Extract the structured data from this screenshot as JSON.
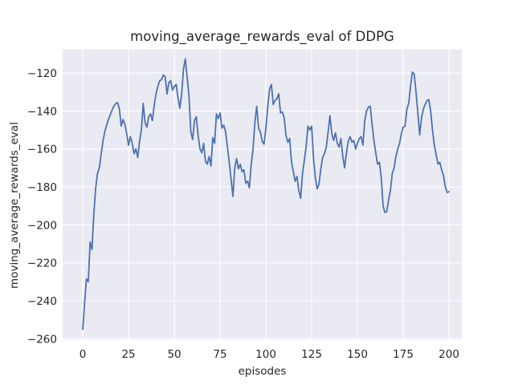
{
  "chart_data": {
    "type": "line",
    "title": "moving_average_rewards_eval of DDPG",
    "xlabel": "episodes",
    "ylabel": "moving_average_rewards_eval",
    "x_start": 0,
    "x_step": 1,
    "values": [
      -255,
      -241,
      -228.5,
      -230,
      -209,
      -213,
      -195,
      -181,
      -173,
      -170,
      -163,
      -156,
      -151,
      -147.5,
      -144.5,
      -142,
      -139.5,
      -137.5,
      -136,
      -135.5,
      -139,
      -148,
      -144.5,
      -147,
      -152,
      -158,
      -153.5,
      -157,
      -162.5,
      -160,
      -164.5,
      -156,
      -150,
      -136,
      -146,
      -148.5,
      -143,
      -141.5,
      -145,
      -137,
      -131,
      -127,
      -124,
      -123.5,
      -121,
      -122,
      -131,
      -125,
      -124,
      -129,
      -127,
      -126,
      -133,
      -138.5,
      -131,
      -118,
      -112.5,
      -122,
      -132,
      -151,
      -155,
      -145,
      -143,
      -153,
      -160,
      -162,
      -157,
      -166.5,
      -168,
      -164,
      -169,
      -154,
      -157,
      -141.5,
      -144,
      -141,
      -149,
      -147.5,
      -151,
      -159,
      -167,
      -176,
      -185,
      -170,
      -165,
      -170.5,
      -168,
      -172,
      -171,
      -178,
      -177,
      -180.5,
      -168,
      -160,
      -146,
      -137.5,
      -149,
      -151,
      -156,
      -157.5,
      -149,
      -138,
      -128.5,
      -126,
      -136.5,
      -134.5,
      -133.5,
      -131,
      -141,
      -140.5,
      -143.5,
      -153,
      -156.5,
      -154.5,
      -167,
      -172,
      -177,
      -174.5,
      -182,
      -186,
      -173,
      -166,
      -158.5,
      -148,
      -150,
      -148,
      -165,
      -175,
      -181,
      -178.5,
      -170.5,
      -164.5,
      -162.5,
      -159,
      -151,
      -142.5,
      -152,
      -155.5,
      -151.5,
      -157,
      -159,
      -154.5,
      -164,
      -170,
      -162,
      -156,
      -153.5,
      -156.5,
      -155.5,
      -160,
      -157,
      -154.5,
      -153.5,
      -158,
      -145,
      -140,
      -138,
      -137.5,
      -147,
      -155.5,
      -162,
      -168,
      -167,
      -175,
      -190,
      -193.5,
      -193,
      -187,
      -182,
      -173,
      -170,
      -164,
      -160,
      -157,
      -152,
      -148.5,
      -148,
      -139,
      -136,
      -127,
      -119.5,
      -120.5,
      -130,
      -141,
      -152.5,
      -143.5,
      -139,
      -136.5,
      -134.5,
      -134,
      -140,
      -150,
      -158,
      -163,
      -168,
      -167,
      -171,
      -174,
      -180,
      -183,
      -182.5
    ],
    "xlim": [
      -11,
      207
    ],
    "ylim": [
      -260.5,
      -107.5
    ],
    "xticks": [
      0,
      25,
      50,
      75,
      100,
      125,
      150,
      175,
      200
    ],
    "yticks": [
      -260,
      -240,
      -220,
      -200,
      -180,
      -160,
      -140,
      -120
    ],
    "grid": true,
    "legend_position": "none",
    "line_color": "#4C72B0",
    "plot_bg": "#EAEAF2",
    "grid_color": "#FFFFFF",
    "text_color": "#262626"
  }
}
